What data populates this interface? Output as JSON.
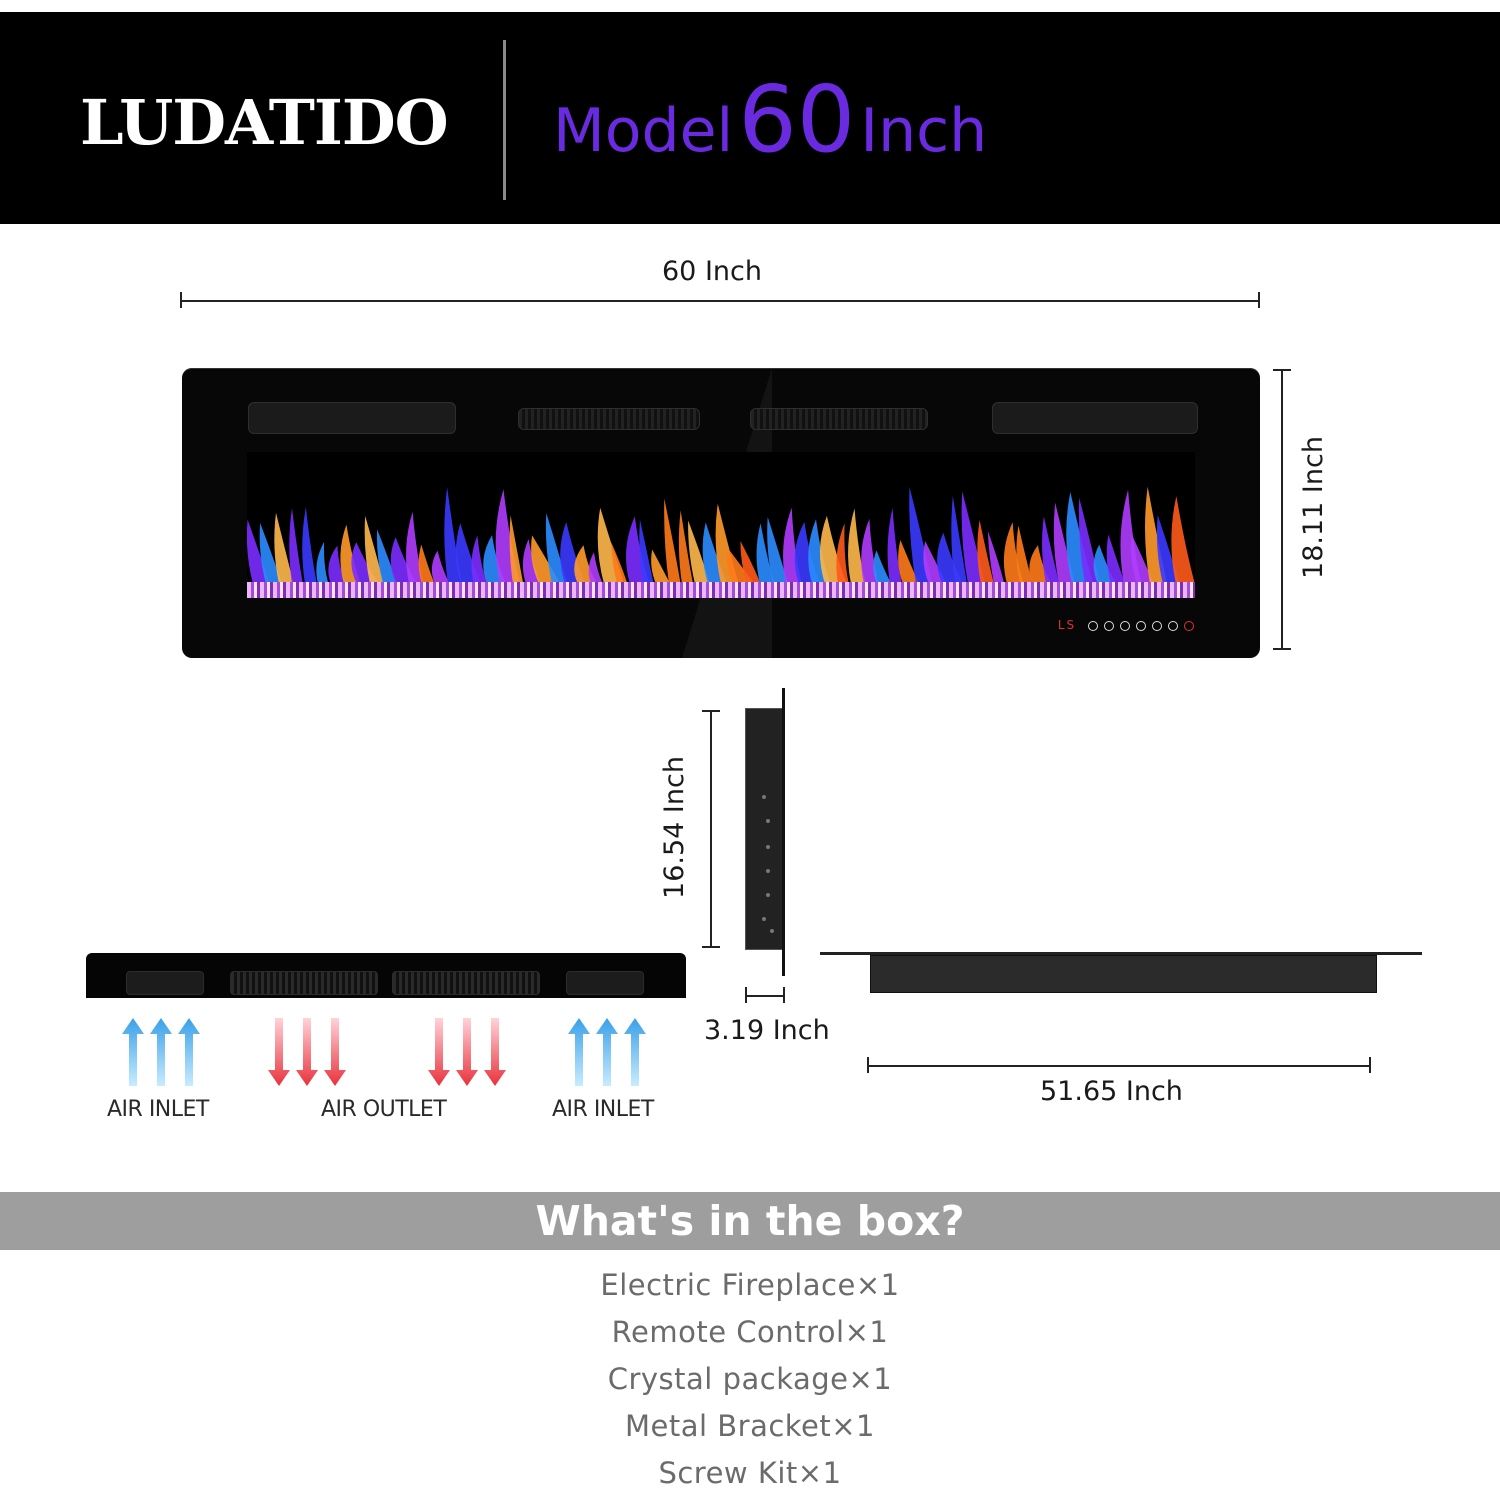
{
  "header": {
    "brand": "LUDATIDO",
    "model_word": "Model",
    "model_number": "60",
    "model_unit": "Inch",
    "accent_color": "#6a2be0"
  },
  "dimensions": {
    "width_label": "60 Inch",
    "height_label": "18.11 Inch",
    "inner_height_label": "16.54 Inch",
    "depth_label": "3.19 Inch",
    "bottom_width_label": "51.65 Inch"
  },
  "fireplace": {
    "control_panel_logo": "LS",
    "control_buttons": 7
  },
  "airflow": {
    "left_label": "AIR INLET",
    "center_label": "AIR OUTLET",
    "right_label": "AIR INLET",
    "inlet_color": "#3aa0e8",
    "outlet_color": "#e8323c"
  },
  "box": {
    "title": "What's in the box?",
    "items": [
      "Electric Fireplace×1",
      "Remote Control×1",
      "Crystal package×1",
      "Metal Bracket×1",
      "Screw Kit×1"
    ]
  }
}
